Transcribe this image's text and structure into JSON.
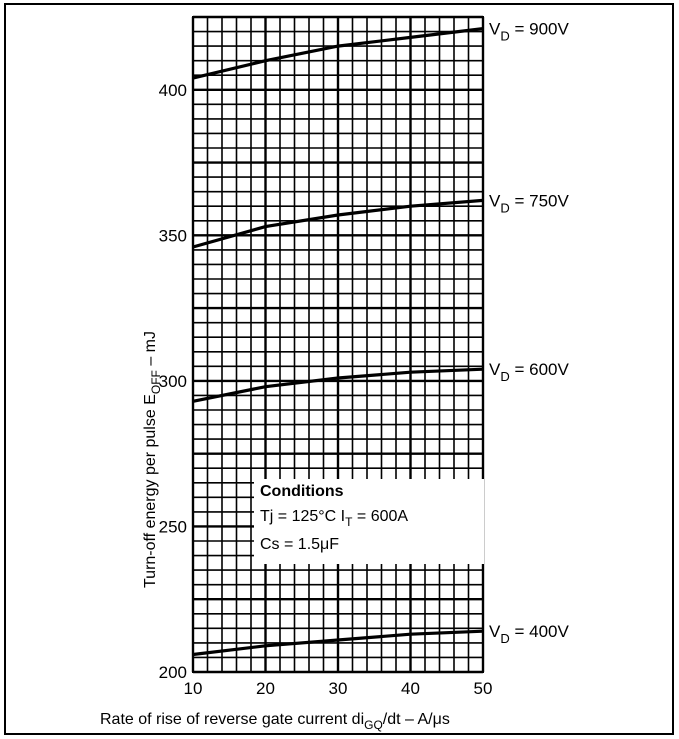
{
  "chart_data": {
    "type": "line",
    "xlabel": "Rate of rise of reverse gate current di",
    "xlabel_sub": "GQ",
    "xlabel_tail": "/dt – A/μs",
    "ylabel": "Turn-off energy per pulse E",
    "ylabel_sub": "OFF",
    "ylabel_tail": " – mJ",
    "xlim": [
      10,
      50
    ],
    "ylim": [
      200,
      425
    ],
    "x_ticks": [
      10,
      20,
      30,
      40,
      50
    ],
    "y_ticks": [
      200,
      250,
      300,
      350,
      400
    ],
    "grid": true,
    "series": [
      {
        "name": "V",
        "name_sub": "D",
        "name_tail": " = 900V",
        "x": [
          10,
          20,
          30,
          40,
          50
        ],
        "y": [
          404,
          410,
          415,
          418,
          421
        ]
      },
      {
        "name": "V",
        "name_sub": "D",
        "name_tail": " = 750V",
        "x": [
          10,
          20,
          30,
          40,
          50
        ],
        "y": [
          346,
          353,
          357,
          360,
          362
        ]
      },
      {
        "name": "V",
        "name_sub": "D",
        "name_tail": " = 600V",
        "x": [
          10,
          20,
          30,
          40,
          50
        ],
        "y": [
          293,
          298,
          301,
          303,
          304
        ]
      },
      {
        "name": "V",
        "name_sub": "D",
        "name_tail": " = 400V",
        "x": [
          10,
          20,
          30,
          40,
          50
        ],
        "y": [
          206,
          209,
          211,
          213,
          214
        ]
      }
    ],
    "annotation": {
      "title": "Conditions",
      "line1": "Tj = 125°C  I",
      "line1_sub": "T",
      "line1_tail": " = 600A",
      "line2": "Cs = 1.5μF"
    }
  }
}
